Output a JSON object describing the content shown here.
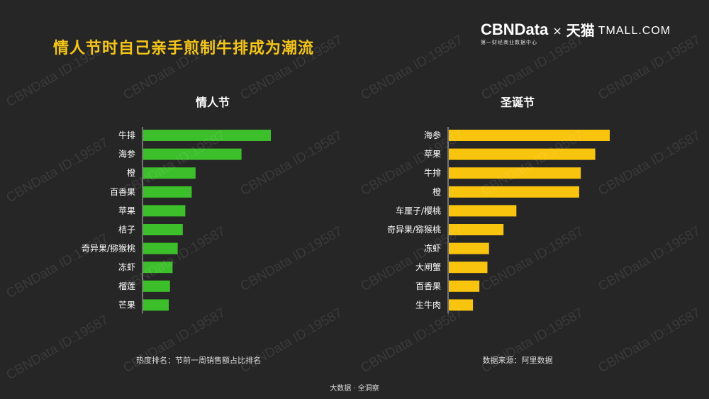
{
  "page_title": "情人节时自己亲手煎制牛排成为潮流",
  "logo": {
    "cbn_brand": "CBNData",
    "cbn_sub": "第一财经商业数据中心",
    "separator": "×",
    "tmall_cn": "天猫",
    "tmall_en": "TMALL.COM"
  },
  "watermark_text": "CBNData ID:19587",
  "notes": {
    "left": "热度排名：节前一周销售额占比排名",
    "right": "数据来源：阿里数据",
    "footer": "大数据 · 全洞察"
  },
  "chart_data": [
    {
      "type": "bar",
      "orientation": "horizontal",
      "title": "情人节",
      "color": "#3cbf2a",
      "categories": [
        "牛排",
        "海参",
        "橙",
        "百香果",
        "苹果",
        "桔子",
        "奇异果/猕猴桃",
        "冻虾",
        "榴莲",
        "芒果"
      ],
      "values": [
        100,
        77,
        41,
        38,
        33,
        31,
        27,
        23,
        21,
        20
      ],
      "xlim": [
        0,
        100
      ]
    },
    {
      "type": "bar",
      "orientation": "horizontal",
      "title": "圣诞节",
      "color": "#f8c40e",
      "categories": [
        "海参",
        "苹果",
        "牛排",
        "橙",
        "车厘子/樱桃",
        "奇异果/猕猴桃",
        "冻虾",
        "大闸蟹",
        "百香果",
        "生牛肉"
      ],
      "values": [
        100,
        91,
        82,
        81,
        42,
        34,
        25,
        24,
        19,
        15
      ],
      "xlim": [
        0,
        100
      ]
    }
  ]
}
